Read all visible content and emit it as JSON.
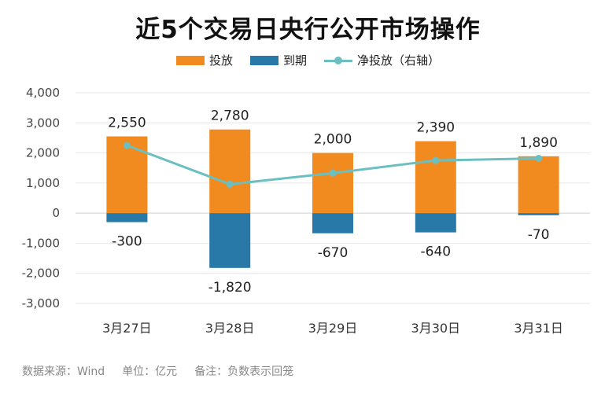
{
  "title": "近5个交易日央行公开市场操作",
  "footer": {
    "source": "数据来源：Wind",
    "unit": "单位：亿元",
    "note": "备注：负数表示回笼"
  },
  "chart_data": {
    "type": "bar",
    "categories": [
      "3月27日",
      "3月28日",
      "3月29日",
      "3月30日",
      "3月31日"
    ],
    "series": [
      {
        "name": "投放",
        "type": "bar",
        "color": "#f28b1f",
        "values": [
          2550,
          2780,
          2000,
          2390,
          1890
        ],
        "labels": [
          "2,550",
          "2,780",
          "2,000",
          "2,390",
          "1,890"
        ]
      },
      {
        "name": "到期",
        "type": "bar",
        "color": "#2878a8",
        "values": [
          -300,
          -1820,
          -670,
          -640,
          -70
        ],
        "labels": [
          "-300",
          "-1,820",
          "-670",
          "-640",
          "-70"
        ]
      },
      {
        "name": "净投放（右轴）",
        "type": "line",
        "color": "#6bbfc1",
        "values": [
          2250,
          960,
          1330,
          1750,
          1820
        ]
      }
    ],
    "yticks": [
      4000,
      3000,
      2000,
      1000,
      0,
      -1000,
      -2000,
      -3000
    ],
    "ytick_labels": [
      "4,000",
      "3,000",
      "2,000",
      "1,000",
      "0",
      "-1,000",
      "-2,000",
      "-3,000"
    ],
    "ylim": [
      -3000,
      4000
    ],
    "grid": true,
    "legend_position": "top-center"
  }
}
